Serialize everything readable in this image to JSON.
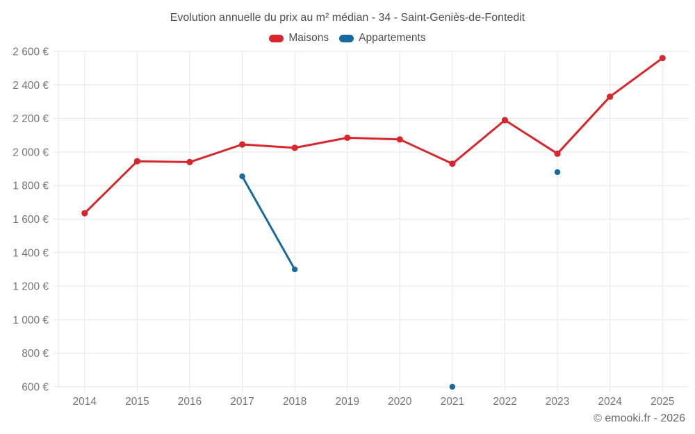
{
  "header": {
    "title": "Evolution annuelle du prix au m² médian - 34 - Saint-Geniès-de-Fontedit"
  },
  "footer": {
    "copyright": "© emooki.fr - 2026"
  },
  "chart_data": {
    "type": "line",
    "title": "Evolution annuelle du prix au m² médian - 34 - Saint-Geniès-de-Fontedit",
    "categories": [
      "2014",
      "2015",
      "2016",
      "2017",
      "2018",
      "2019",
      "2020",
      "2021",
      "2022",
      "2023",
      "2024",
      "2025"
    ],
    "series": [
      {
        "name": "Maisons",
        "color": "#d8262c",
        "point_radius": 4.6,
        "values": [
          1635,
          1945,
          1940,
          2045,
          2025,
          2085,
          2075,
          1930,
          2190,
          1990,
          2330,
          2560
        ]
      },
      {
        "name": "Appartements",
        "color": "#1a699e",
        "point_radius": 4.2,
        "values": [
          null,
          null,
          null,
          1855,
          1300,
          null,
          null,
          600,
          null,
          1880,
          null,
          null
        ]
      }
    ],
    "xlabel": "",
    "ylabel": "",
    "ylim": [
      600,
      2600
    ],
    "yticks": [
      600,
      800,
      1000,
      1200,
      1400,
      1600,
      1800,
      2000,
      2200,
      2400,
      2600
    ],
    "ytick_labels": [
      "600 €",
      "800 €",
      "1 000 €",
      "1 200 €",
      "1 400 €",
      "1 600 €",
      "1 800 €",
      "2 000 €",
      "2 200 €",
      "2 400 €",
      "2 600 €"
    ],
    "grid": true,
    "grid_color": "#e6e6e6",
    "axis_label_color": "#757575",
    "legend_position": "top",
    "currency": "€"
  }
}
